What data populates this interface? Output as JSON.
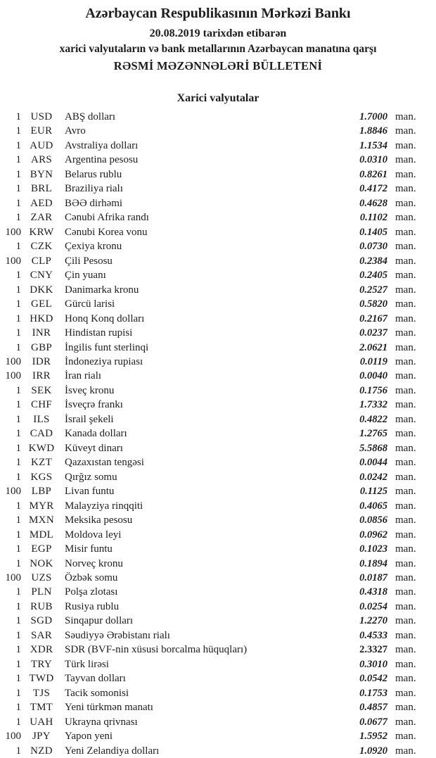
{
  "colors": {
    "text": "#1d1d1d",
    "background": "#ffffff"
  },
  "header": {
    "title": "Azərbaycan Respublikasının Mərkəzi Bankı",
    "date_line": "20.08.2019 tarixdən etibarən",
    "subtitle": "xarici valyutaların və bank metallarının Azərbaycan manatına qarşı",
    "bulletin_line": "RƏSMİ MƏZƏNNƏLƏRİ BÜLLETENİ"
  },
  "section": {
    "title": "Xarici valyutalar"
  },
  "rates_table": {
    "unit_label": "man.",
    "rows": [
      {
        "qty": "1",
        "code": "USD",
        "name": "ABŞ dolları",
        "rate": "1.7000"
      },
      {
        "qty": "1",
        "code": "EUR",
        "name": "Avro",
        "rate": "1.8846"
      },
      {
        "qty": "1",
        "code": "AUD",
        "name": "Avstraliya dolları",
        "rate": "1.1534"
      },
      {
        "qty": "1",
        "code": "ARS",
        "name": "Argentina pesosu",
        "rate": "0.0310"
      },
      {
        "qty": "1",
        "code": "BYN",
        "name": "Belarus rublu",
        "rate": "0.8261"
      },
      {
        "qty": "1",
        "code": "BRL",
        "name": "Braziliya rialı",
        "rate": "0.4172"
      },
      {
        "qty": "1",
        "code": "AED",
        "name": "BƏƏ dirhəmi",
        "rate": "0.4628"
      },
      {
        "qty": "1",
        "code": "ZAR",
        "name": "Cənubi Afrika randı",
        "rate": "0.1102"
      },
      {
        "qty": "100",
        "code": "KRW",
        "name": "Cənubi Korea vonu",
        "rate": "0.1405"
      },
      {
        "qty": "1",
        "code": "CZK",
        "name": "Çexiya kronu",
        "rate": "0.0730"
      },
      {
        "qty": "100",
        "code": "CLP",
        "name": "Çili Pesosu",
        "rate": "0.2384"
      },
      {
        "qty": "1",
        "code": "CNY",
        "name": "Çin yuanı",
        "rate": "0.2405"
      },
      {
        "qty": "1",
        "code": "DKK",
        "name": "Danimarka kronu",
        "rate": "0.2527"
      },
      {
        "qty": "1",
        "code": "GEL",
        "name": "Gürcü larisi",
        "rate": "0.5820"
      },
      {
        "qty": "1",
        "code": "HKD",
        "name": "Honq Konq dolları",
        "rate": "0.2167"
      },
      {
        "qty": "1",
        "code": "INR",
        "name": "Hindistan rupisi",
        "rate": "0.0237"
      },
      {
        "qty": "1",
        "code": "GBP",
        "name": "İngilis funt sterlinqi",
        "rate": "2.0621"
      },
      {
        "qty": "100",
        "code": "IDR",
        "name": "İndoneziya rupiası",
        "rate": "0.0119"
      },
      {
        "qty": "100",
        "code": "IRR",
        "name": "İran rialı",
        "rate": "0.0040"
      },
      {
        "qty": "1",
        "code": "SEK",
        "name": "İsveç kronu",
        "rate": "0.1756"
      },
      {
        "qty": "1",
        "code": "CHF",
        "name": "İsveçrə frankı",
        "rate": "1.7332"
      },
      {
        "qty": "1",
        "code": "ILS",
        "name": "İsrail şekeli",
        "rate": "0.4822"
      },
      {
        "qty": "1",
        "code": "CAD",
        "name": "Kanada dolları",
        "rate": "1.2765"
      },
      {
        "qty": "1",
        "code": "KWD",
        "name": "Küveyt dinarı",
        "rate": "5.5868"
      },
      {
        "qty": "1",
        "code": "KZT",
        "name": "Qazaxıstan tengəsi",
        "rate": "0.0044"
      },
      {
        "qty": "1",
        "code": "KGS",
        "name": "Qırğız somu",
        "rate": "0.0242"
      },
      {
        "qty": "100",
        "code": "LBP",
        "name": "Livan funtu",
        "rate": "0.1125"
      },
      {
        "qty": "1",
        "code": "MYR",
        "name": "Malayziya rinqqiti",
        "rate": "0.4065"
      },
      {
        "qty": "1",
        "code": "MXN",
        "name": "Meksika pesosu",
        "rate": "0.0856"
      },
      {
        "qty": "1",
        "code": "MDL",
        "name": "Moldova leyi",
        "rate": "0.0962"
      },
      {
        "qty": "1",
        "code": "EGP",
        "name": "Misir funtu",
        "rate": "0.1023"
      },
      {
        "qty": "1",
        "code": "NOK",
        "name": "Norveç kronu",
        "rate": "0.1894"
      },
      {
        "qty": "100",
        "code": "UZS",
        "name": "Özbək somu",
        "rate": "0.0187"
      },
      {
        "qty": "1",
        "code": "PLN",
        "name": "Polşa zlotası",
        "rate": "0.4318"
      },
      {
        "qty": "1",
        "code": "RUB",
        "name": "Rusiya rublu",
        "rate": "0.0254"
      },
      {
        "qty": "1",
        "code": "SGD",
        "name": "Sinqapur dolları",
        "rate": "1.2270"
      },
      {
        "qty": "1",
        "code": "SAR",
        "name": "Səudiyyə Ərəbistanı rialı",
        "rate": "0.4533"
      },
      {
        "qty": "1",
        "code": "XDR",
        "name": "SDR (BVF-nin xüsusi borcalma hüquqları)",
        "rate": "2.3327",
        "rate_upright": true
      },
      {
        "qty": "1",
        "code": "TRY",
        "name": "Türk lirəsi",
        "rate": "0.3010"
      },
      {
        "qty": "1",
        "code": "TWD",
        "name": "Tayvan dolları",
        "rate": "0.0542"
      },
      {
        "qty": "1",
        "code": "TJS",
        "name": "Tacik somonisi",
        "rate": "0.1753"
      },
      {
        "qty": "1",
        "code": "TMT",
        "name": "Yeni türkmən manatı",
        "rate": "0.4857"
      },
      {
        "qty": "1",
        "code": "UAH",
        "name": "Ukrayna qrivnası",
        "rate": "0.0677"
      },
      {
        "qty": "100",
        "code": "JPY",
        "name": "Yapon yeni",
        "rate": "1.5952"
      },
      {
        "qty": "1",
        "code": "NZD",
        "name": "Yeni Zelandiya dolları",
        "rate": "1.0920"
      }
    ]
  }
}
